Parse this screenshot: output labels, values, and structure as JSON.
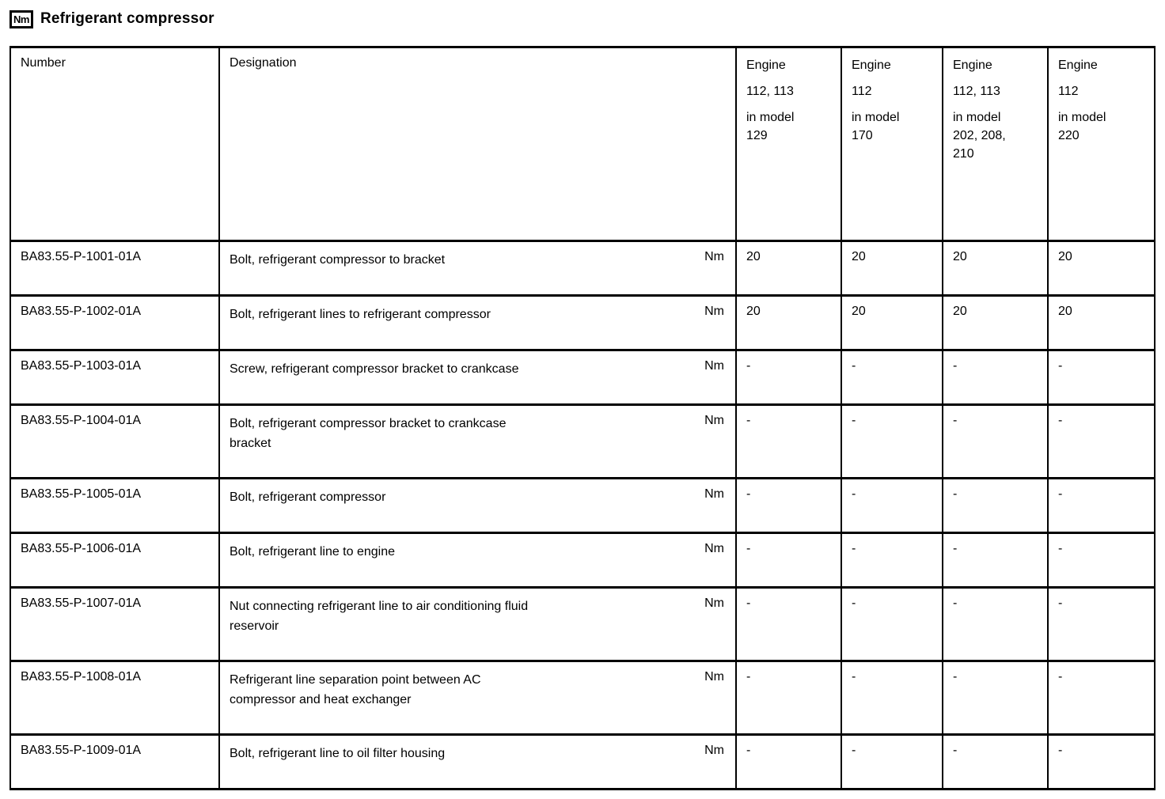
{
  "page": {
    "badge": "Nm",
    "title": "Refrigerant compressor"
  },
  "table": {
    "headers": {
      "number": "Number",
      "designation": "Designation",
      "engines": [
        {
          "lines_spaced": [
            "Engine",
            "112, 113"
          ],
          "lines_tight": [
            "in model",
            "129"
          ]
        },
        {
          "lines_spaced": [
            "Engine",
            "112"
          ],
          "lines_tight": [
            "in model",
            "170"
          ]
        },
        {
          "lines_spaced": [
            "Engine",
            "112, 113"
          ],
          "lines_tight": [
            "in model",
            "202, 208,",
            "210"
          ]
        },
        {
          "lines_spaced": [
            "Engine",
            "112"
          ],
          "lines_tight": [
            "in model",
            "220"
          ]
        }
      ]
    },
    "rows": [
      {
        "number": "BA83.55-P-1001-01A",
        "designation": [
          "Bolt, refrigerant compressor to bracket"
        ],
        "unit": "Nm",
        "values": [
          "20",
          "20",
          "20",
          "20"
        ]
      },
      {
        "number": "BA83.55-P-1002-01A",
        "designation": [
          "Bolt, refrigerant lines to refrigerant compressor"
        ],
        "unit": "Nm",
        "values": [
          "20",
          "20",
          "20",
          "20"
        ]
      },
      {
        "number": "BA83.55-P-1003-01A",
        "designation": [
          "Screw, refrigerant compressor bracket to crankcase"
        ],
        "unit": "Nm",
        "values": [
          "-",
          "-",
          "-",
          "-"
        ]
      },
      {
        "number": "BA83.55-P-1004-01A",
        "designation": [
          "Bolt, refrigerant compressor bracket to crankcase",
          "bracket"
        ],
        "unit": "Nm",
        "values": [
          "-",
          "-",
          "-",
          "-"
        ]
      },
      {
        "number": "BA83.55-P-1005-01A",
        "designation": [
          "Bolt, refrigerant compressor"
        ],
        "unit": "Nm",
        "values": [
          "-",
          "-",
          "-",
          "-"
        ]
      },
      {
        "number": "BA83.55-P-1006-01A",
        "designation": [
          "Bolt, refrigerant line to engine"
        ],
        "unit": "Nm",
        "values": [
          "-",
          "-",
          "-",
          "-"
        ]
      },
      {
        "number": "BA83.55-P-1007-01A",
        "designation": [
          "Nut connecting refrigerant line to air conditioning fluid",
          "reservoir"
        ],
        "unit": "Nm",
        "values": [
          "-",
          "-",
          "-",
          "-"
        ]
      },
      {
        "number": "BA83.55-P-1008-01A",
        "designation": [
          "Refrigerant line separation point between AC",
          "compressor and heat exchanger"
        ],
        "unit": "Nm",
        "values": [
          "-",
          "-",
          "-",
          "-"
        ]
      },
      {
        "number": "BA83.55-P-1009-01A",
        "designation": [
          "Bolt, refrigerant line to oil filter housing"
        ],
        "unit": "Nm",
        "values": [
          "-",
          "-",
          "-",
          "-"
        ]
      }
    ]
  }
}
